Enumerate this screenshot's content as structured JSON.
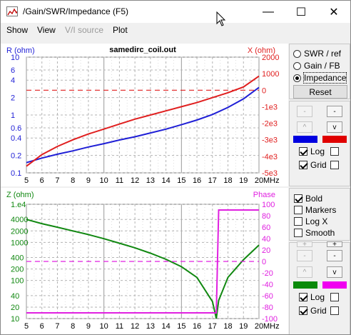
{
  "window": {
    "title": "/Gain/SWR/Impedance (F5)",
    "controls": {
      "minimize": "—",
      "maximize": "☐",
      "close": "✕"
    }
  },
  "menu": [
    "Show",
    "View",
    "V/I source",
    "Plot"
  ],
  "top_chart": {
    "title": "samedirc_coil.out",
    "left_axis_label": "R (ohm)",
    "right_axis_label": "X (ohm)",
    "left_ticks": [
      "10",
      "6",
      "4",
      "2",
      "1",
      "0.6",
      "0.4",
      "0.2",
      "0.1"
    ],
    "right_ticks": [
      "2000",
      "1000",
      "0",
      "-1e3",
      "-2e3",
      "-3e3",
      "-4e3",
      "-5e3"
    ],
    "x_ticks": [
      "5",
      "6",
      "7",
      "8",
      "9",
      "10",
      "11",
      "12",
      "13",
      "14",
      "15",
      "16",
      "17",
      "18",
      "19",
      "20"
    ],
    "x_unit": "MHz",
    "colors": {
      "left": "#1f1fd6",
      "right": "#e01f1f",
      "grid": "#b4b4b4"
    }
  },
  "bottom_chart": {
    "left_axis_label": "Z (ohm)",
    "right_axis_label": "Phase",
    "left_ticks": [
      "1.e4",
      "4000",
      "2000",
      "1000",
      "400",
      "200",
      "100",
      "40",
      "20",
      "10"
    ],
    "right_ticks": [
      "100",
      "80",
      "60",
      "40",
      "20",
      "0",
      "-20",
      "-40",
      "-60",
      "-80",
      "-100"
    ],
    "x_ticks": [
      "5",
      "6",
      "7",
      "8",
      "9",
      "10",
      "11",
      "12",
      "13",
      "14",
      "15",
      "16",
      "17",
      "18",
      "19",
      "20"
    ],
    "x_unit": "MHz",
    "colors": {
      "left": "#118811",
      "right": "#e020e0",
      "grid": "#b4b4b4"
    }
  },
  "chart_data": [
    {
      "type": "line",
      "title": "samedirc_coil.out",
      "xlabel": "MHz",
      "x": [
        5,
        6,
        7,
        8,
        9,
        10,
        11,
        12,
        13,
        14,
        15,
        16,
        17,
        18,
        19,
        20
      ],
      "x_range": [
        5,
        20
      ],
      "y_left": {
        "label": "R (ohm)",
        "scale": "log",
        "range": [
          0.1,
          10
        ]
      },
      "y_right": {
        "label": "X (ohm)",
        "range": [
          -5000,
          2000
        ]
      },
      "series": [
        {
          "axis": "left",
          "color": "#1f1fd6",
          "values": [
            0.15,
            0.18,
            0.21,
            0.24,
            0.28,
            0.32,
            0.37,
            0.42,
            0.49,
            0.57,
            0.68,
            0.82,
            1.02,
            1.35,
            1.9,
            3.0
          ]
        },
        {
          "axis": "right",
          "color": "#e01f1f",
          "values": [
            -4600,
            -3900,
            -3400,
            -3000,
            -2650,
            -2350,
            -2050,
            -1750,
            -1500,
            -1250,
            -1000,
            -750,
            -450,
            -150,
            200,
            850
          ]
        },
        {
          "axis": "right",
          "color": "#e01f1f",
          "dashed": true,
          "values": [
            0,
            0,
            0,
            0,
            0,
            0,
            0,
            0,
            0,
            0,
            0,
            0,
            0,
            0,
            0,
            0
          ]
        }
      ],
      "grid": true
    },
    {
      "type": "line",
      "xlabel": "MHz",
      "x": [
        5,
        6,
        7,
        8,
        9,
        10,
        11,
        12,
        13,
        14,
        15,
        16,
        17,
        17.25,
        17.4,
        18,
        19,
        20
      ],
      "x_range": [
        5,
        20
      ],
      "y_left": {
        "label": "Z (ohm)",
        "scale": "log",
        "range": [
          10,
          10000
        ]
      },
      "y_right": {
        "label": "Phase",
        "range": [
          -100,
          100
        ]
      },
      "series": [
        {
          "axis": "left",
          "color": "#118811",
          "values": [
            4000,
            3100,
            2500,
            2000,
            1600,
            1250,
            950,
            720,
            520,
            360,
            230,
            120,
            28,
            10,
            30,
            120,
            350,
            850
          ]
        },
        {
          "axis": "right",
          "color": "#e020e0",
          "values": [
            -90,
            -90,
            -90,
            -90,
            -90,
            -90,
            -90,
            -90,
            -90,
            -90,
            -90,
            -90,
            -90,
            -90,
            90,
            90,
            90,
            90
          ]
        },
        {
          "axis": "right",
          "color": "#e020e0",
          "dashed": true,
          "values": [
            0,
            0,
            0,
            0,
            0,
            0,
            0,
            0,
            0,
            0,
            0,
            0,
            0,
            0,
            0,
            0,
            0,
            0
          ]
        }
      ],
      "grid": true
    }
  ],
  "panel_top": {
    "radios": [
      {
        "label": "SWR / ref",
        "checked": false
      },
      {
        "label": "Gain / FB",
        "checked": false
      },
      {
        "label": "Impedance",
        "checked": true
      }
    ],
    "reset": "Reset",
    "scale_buttons": [
      "-",
      "-",
      "^",
      "v"
    ],
    "swatch_left": "#0000e0",
    "swatch_right": "#e00000",
    "log_label": "Log",
    "grid_label": "Grid",
    "log_left": true,
    "log_right": false,
    "grid_left": true,
    "grid_right": false
  },
  "panel_bot": {
    "options": [
      {
        "label": "Bold",
        "checked": true
      },
      {
        "label": "Markers",
        "checked": false
      },
      {
        "label": "Log X",
        "checked": false
      },
      {
        "label": "Smooth",
        "checked": false
      }
    ],
    "scale_buttons": [
      "+",
      "+",
      "-",
      "-",
      "^",
      "v"
    ],
    "swatch_left": "#0a8a0a",
    "swatch_right": "#f000f0",
    "log_label": "Log",
    "grid_label": "Grid",
    "log_left": true,
    "log_right": false,
    "grid_left": true,
    "grid_right": false
  }
}
